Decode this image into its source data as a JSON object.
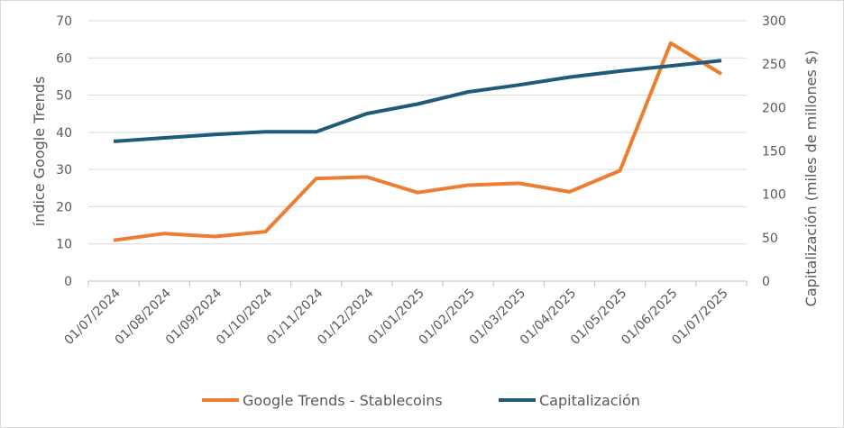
{
  "chart_data": {
    "type": "line",
    "categories": [
      "01/07/2024",
      "01/08/2024",
      "01/09/2024",
      "01/10/2024",
      "01/11/2024",
      "01/12/2024",
      "01/01/2025",
      "01/02/2025",
      "01/03/2025",
      "01/04/2025",
      "01/05/2025",
      "01/06/2025",
      "01/07/2025"
    ],
    "y_left": {
      "label": "índice Google Trends",
      "lim": [
        0,
        70
      ],
      "ticks": [
        0,
        10,
        20,
        30,
        40,
        50,
        60,
        70
      ]
    },
    "y_right": {
      "label": "Capitalización (miles de millones $)",
      "lim": [
        0,
        300
      ],
      "ticks": [
        0,
        50,
        100,
        150,
        200,
        250,
        300
      ]
    },
    "grid": "horizontal",
    "legend_position": "bottom",
    "series": [
      {
        "name": "Google Trends - Stablecoins",
        "axis": "left",
        "color": "#ed7d31",
        "values": [
          11,
          12.8,
          12,
          13.3,
          27.6,
          28,
          23.8,
          25.8,
          26.3,
          24,
          29.7,
          64,
          55.7
        ]
      },
      {
        "name": "Capitalización",
        "axis": "right",
        "color": "#1f5b78",
        "values": [
          161,
          165,
          169,
          172,
          172,
          193,
          204,
          218,
          226,
          235,
          242,
          248,
          254
        ]
      }
    ]
  }
}
